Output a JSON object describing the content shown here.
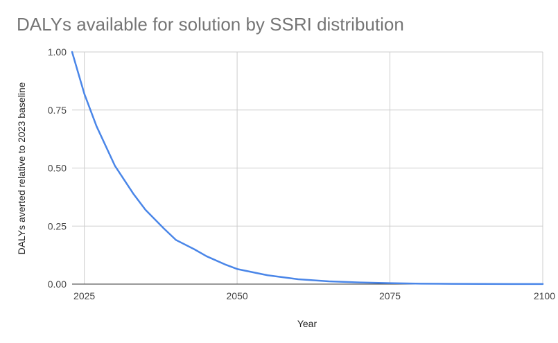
{
  "chart_data": {
    "type": "line",
    "title": "DALYs available for solution by SSRI distribution",
    "xlabel": "Year",
    "ylabel": "DALYs averted relative to 2023 baseline",
    "xlim": [
      2023,
      2100
    ],
    "ylim": [
      0,
      1
    ],
    "x_ticks": [
      2025,
      2050,
      2075,
      2100
    ],
    "x_tick_labels": [
      "2025",
      "2050",
      "2075",
      "2100"
    ],
    "y_ticks": [
      0,
      0.25,
      0.5,
      0.75,
      1
    ],
    "y_tick_labels": [
      "0.00",
      "0.25",
      "0.50",
      "0.75",
      "1.00"
    ],
    "grid": true,
    "legend": "none",
    "series": [
      {
        "color": "#4a86e8",
        "x": [
          2023,
          2025,
          2027,
          2030,
          2033,
          2035,
          2038,
          2040,
          2043,
          2045,
          2048,
          2050,
          2055,
          2060,
          2065,
          2070,
          2075,
          2080,
          2085,
          2090,
          2095,
          2100
        ],
        "y": [
          1.0,
          0.82,
          0.68,
          0.51,
          0.39,
          0.32,
          0.24,
          0.19,
          0.15,
          0.12,
          0.085,
          0.065,
          0.038,
          0.021,
          0.012,
          0.007,
          0.004,
          0.002,
          0.001,
          0.0006,
          0.0003,
          0.0002
        ]
      }
    ]
  }
}
